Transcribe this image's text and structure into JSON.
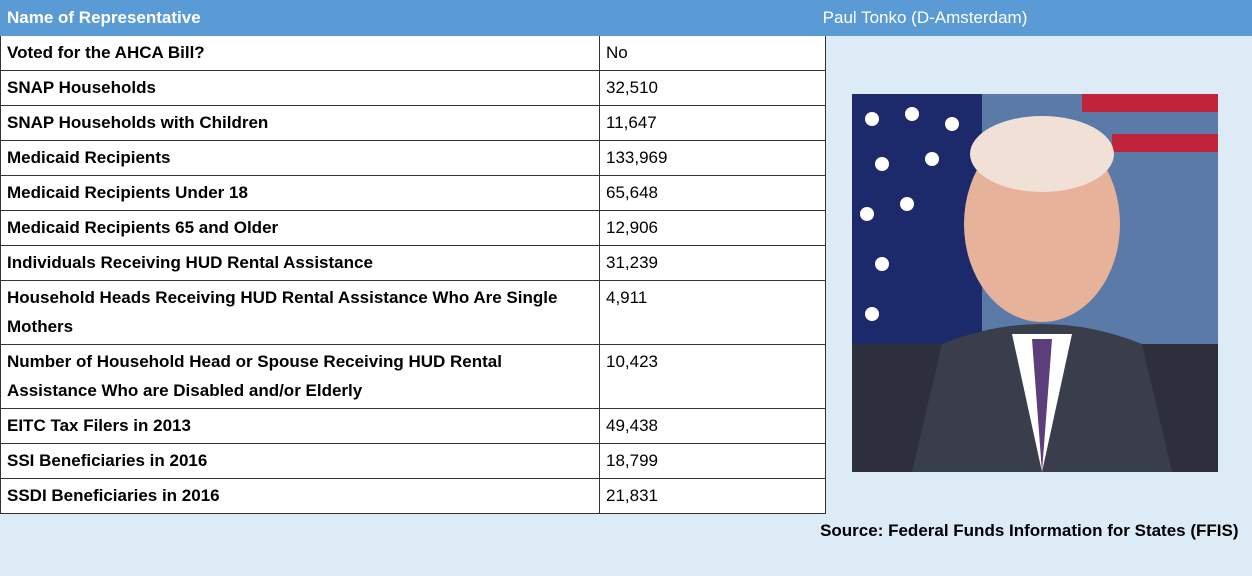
{
  "header": {
    "label": "Name of Representative",
    "name": "Paul Tonko (D-Amsterdam)"
  },
  "table": {
    "rows": [
      [
        "Voted for the AHCA Bill?",
        "No"
      ],
      [
        "SNAP Households",
        "32,510"
      ],
      [
        "SNAP Households with Children",
        "11,647"
      ],
      [
        "Medicaid Recipients",
        "133,969"
      ],
      [
        "Medicaid Recipients Under 18",
        "65,648"
      ],
      [
        "Medicaid Recipients 65 and Older",
        "12,906"
      ],
      [
        "Individuals Receiving HUD Rental Assistance",
        "31,239"
      ],
      [
        "Household Heads Receiving HUD Rental Assistance Who Are Single Mothers",
        "4,911"
      ],
      [
        "Number of Household Head or Spouse Receiving HUD Rental Assistance Who are Disabled and/or Elderly",
        "10,423"
      ],
      [
        "EITC Tax Filers in 2013",
        "49,438"
      ],
      [
        "SSI Beneficiaries in 2016",
        "18,799"
      ],
      [
        "SSDI Beneficiaries in 2016",
        "21,831"
      ]
    ]
  },
  "source": "Source: Federal Funds Information for States (FFIS)"
}
